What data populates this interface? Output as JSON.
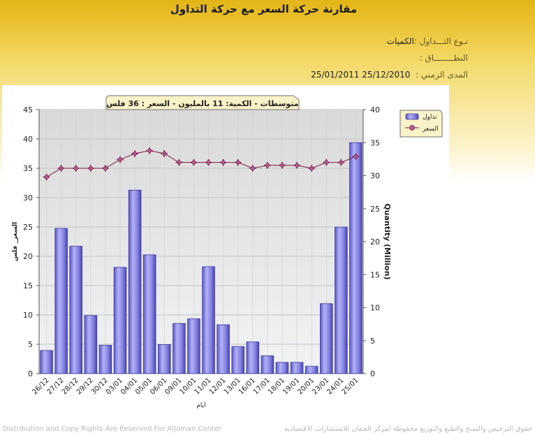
{
  "page": {
    "title": "مقارنة حركة السعر مع حركة التداول",
    "trade_type_label": "نـوع التـــداول :",
    "trade_type_value": "الكميات",
    "range_label": "النطــــــــاق :",
    "range_value": "",
    "period_label": "المدى الزمني :",
    "period_value": "25/12/2010 25/01/2011",
    "footer_left": "Distribution and Copy Rights Are Reserved For AlJoman Center",
    "footer_right": "حقوق الترخيص والنسخ والطبع والتوزيع محفوظة لمركز الجمان للاستشارات الاقتصادية"
  },
  "colors": {
    "bar": "#8a86e6",
    "line": "#7a1a3e",
    "marker": "#b06090"
  },
  "chart_data": {
    "type": "bar",
    "title": "متوسطات - الكمية: 11 بالمليون   - السعر : 36 فلس",
    "categories": [
      "26/12",
      "27/12",
      "28/12",
      "29/12",
      "30/12",
      "03/01",
      "04/01",
      "05/01",
      "06/01",
      "09/01",
      "10/01",
      "11/01",
      "12/01",
      "13/01",
      "16/01",
      "17/01",
      "18/01",
      "19/01",
      "20/01",
      "23/01",
      "24/01",
      "25/01"
    ],
    "xlabel": "ايام",
    "ylabel_left": "السعر_ فلس",
    "ylabel_right": "Quantity (Million)",
    "ylim_left": [
      0,
      45
    ],
    "ylim_right": [
      0,
      40
    ],
    "yticks_left": [
      0,
      5,
      10,
      15,
      20,
      25,
      30,
      35,
      40,
      45
    ],
    "yticks_right": [
      0,
      5,
      10,
      15,
      20,
      25,
      30,
      35,
      40
    ],
    "legend_position": "top-right",
    "series": [
      {
        "name": "تداول",
        "type": "bar",
        "axis": "right",
        "values": [
          3.5,
          22,
          19.3,
          8.8,
          4.3,
          16.1,
          27.8,
          18,
          4.4,
          7.6,
          8.3,
          16.2,
          7.4,
          4.1,
          4.8,
          2.7,
          1.7,
          1.7,
          1.1,
          10.6,
          22.2,
          35
        ]
      },
      {
        "name": "السعر",
        "type": "line",
        "axis": "left",
        "values": [
          33.5,
          35,
          35,
          35,
          35,
          36.5,
          37.5,
          38,
          37.5,
          36,
          36,
          36,
          36,
          36,
          35,
          35.5,
          35.5,
          35.5,
          35,
          36,
          36,
          37
        ]
      }
    ],
    "grid": true
  }
}
